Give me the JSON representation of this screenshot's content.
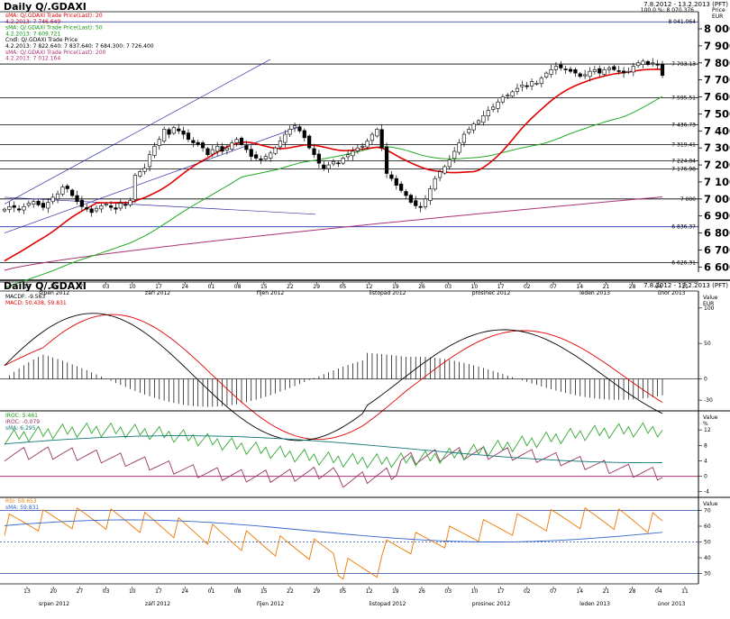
{
  "panel1": {
    "title": "Daily Q/.GDAXI",
    "date_range": "7.8.2012 - 13.2.2013 (PFT)",
    "legend": [
      {
        "text": "sMA: Q/.GDAXI Trade Price(Last): 20",
        "color": "#e00000"
      },
      {
        "text": "4.2.2013: 7 746.649",
        "color": "#e00000"
      },
      {
        "text": "sMA: Q/.GDAXI Trade Price(Last): 50",
        "color": "#119911"
      },
      {
        "text": "4.2.2013: 7 609.721",
        "color": "#119911"
      },
      {
        "text": "Cndl: Q/.GDAXI Trade Price",
        "color": "#000000"
      },
      {
        "text": "4.2.2013: 7 822.640: 7 837.640: 7 684.300: 7 726.400",
        "color": "#000000"
      },
      {
        "text": "sMA: Q/.GDAXI Trade Price(Last): 200",
        "color": "#aa3377"
      },
      {
        "text": "4.2.2013: 7 012.164",
        "color": "#aa3377"
      }
    ],
    "fib_label": "100.0 %: 8 070.376",
    "axis_title": [
      "Price",
      "EUR"
    ],
    "yticks": [
      "8 000",
      "7 900",
      "7 800",
      "7 700",
      "7 600",
      "7 500",
      "7 400",
      "7 300",
      "7 200",
      "7 100",
      "7 000",
      "6 900",
      "6 800",
      "6 700",
      "6 600"
    ],
    "hline_labels": [
      "8 041.064",
      "7 793.13",
      "7 595.51",
      "7 436.73",
      "7 319.41",
      "7 224.84",
      "7 176.98",
      "7 000",
      "6 836.37",
      "6 626.31"
    ],
    "x_tick_labels": [
      "13",
      "20",
      "27",
      "03",
      "10",
      "17",
      "24",
      "01",
      "08",
      "15",
      "22",
      "29",
      "05",
      "12",
      "19",
      "26",
      "03",
      "10",
      "17",
      "02",
      "07",
      "14",
      "21",
      "28",
      "04",
      "11"
    ],
    "x_month_labels": [
      "srpen 2012",
      "září 2012",
      "říjen 2012",
      "listopad 2012",
      "prosinec 2012",
      "leden 2013",
      "únor 2013"
    ]
  },
  "panel2": {
    "title": "Daily Q/.GDAXI",
    "date_range": "7.8.2012 - 13.2.2013 (PFT)",
    "legend": [
      {
        "text": "MACDF: -9.563",
        "color": "#000000"
      },
      {
        "text": "MACD: 50.438, 59.831",
        "color": "#e00000"
      }
    ],
    "axis_title": [
      "Value",
      "EUR"
    ],
    "yticks": [
      "100",
      "50",
      "0",
      "-30"
    ]
  },
  "panel3": {
    "legend": [
      {
        "text": "IROC: 5.461",
        "color": "#119911"
      },
      {
        "text": "IROC: -0.079",
        "color": "#993366"
      },
      {
        "text": "sMA: 6.295",
        "color": "#117777"
      }
    ],
    "axis_title": [
      "Value",
      "%"
    ],
    "yticks": [
      "12",
      "8",
      "4",
      "0",
      "-4"
    ]
  },
  "panel4": {
    "legend": [
      {
        "text": "RSI: 50.653",
        "color": "#ee7700"
      },
      {
        "text": "sMA: 59.831",
        "color": "#3366cc"
      }
    ],
    "axis_title": [
      "Value",
      ""
    ],
    "yticks": [
      "70",
      "60",
      "50",
      "40",
      "30"
    ],
    "x_tick_labels": [
      "13",
      "20",
      "27",
      "03",
      "10",
      "17",
      "24",
      "01",
      "08",
      "15",
      "22",
      "29",
      "05",
      "12",
      "19",
      "26",
      "03",
      "10",
      "17",
      "02",
      "07",
      "14",
      "21",
      "28",
      "04",
      "11"
    ],
    "x_month_labels": [
      "srpen 2012",
      "září 2012",
      "říjen 2012",
      "listopad 2012",
      "prosinec 2012",
      "leden 2013",
      "únor 2013"
    ]
  },
  "chart_data": [
    {
      "type": "candlestick",
      "title": "Daily Q/.GDAXI",
      "ylim": [
        6570,
        8090
      ],
      "grid": false,
      "x_start": "2012-08-07",
      "closes": [
        6940,
        6955,
        6950,
        6935,
        6955,
        6975,
        6985,
        6965,
        6950,
        6980,
        7010,
        7030,
        7070,
        7060,
        7020,
        6985,
        6955,
        6940,
        6920,
        6945,
        6960,
        6970,
        6950,
        6940,
        6975,
        6965,
        6990,
        7140,
        7160,
        7180,
        7260,
        7310,
        7350,
        7410,
        7380,
        7420,
        7400,
        7380,
        7350,
        7330,
        7320,
        7300,
        7260,
        7290,
        7310,
        7280,
        7300,
        7330,
        7350,
        7320,
        7290,
        7250,
        7240,
        7230,
        7250,
        7270,
        7300,
        7340,
        7380,
        7410,
        7430,
        7400,
        7360,
        7300,
        7260,
        7210,
        7180,
        7200,
        7220,
        7210,
        7240,
        7260,
        7280,
        7300,
        7310,
        7340,
        7380,
        7410,
        7300,
        7150,
        7120,
        7080,
        7050,
        7020,
        6980,
        6960,
        6950,
        7000,
        7060,
        7120,
        7160,
        7190,
        7230,
        7280,
        7330,
        7380,
        7410,
        7440,
        7460,
        7490,
        7520,
        7540,
        7570,
        7600,
        7610,
        7630,
        7650,
        7670,
        7660,
        7690,
        7680,
        7710,
        7740,
        7760,
        7780,
        7770,
        7760,
        7750,
        7740,
        7720,
        7730,
        7750,
        7760,
        7740,
        7760,
        7770,
        7760,
        7750,
        7740,
        7750,
        7780,
        7800,
        7810,
        7790,
        7800,
        7790,
        7726
      ],
      "sma20_start": 6620,
      "levels": [
        8041.064,
        7793.13,
        7595.51,
        7436.73,
        7319.41,
        7224.84,
        7176.98,
        7000,
        6836.37,
        6626.31
      ],
      "sma20_last": 7746.649,
      "sma50_last": 7609.721,
      "sma200_last": 7012.164
    },
    {
      "type": "line",
      "title": "MACD",
      "ylim": [
        -40,
        115
      ],
      "series": [
        {
          "name": "MACDF",
          "last": -9.563
        },
        {
          "name": "MACD",
          "last": 50.438
        }
      ]
    },
    {
      "type": "line",
      "title": "IROC",
      "ylim": [
        -5,
        16
      ],
      "series": [
        {
          "name": "IROC",
          "last": 5.461
        },
        {
          "name": "IROC",
          "last": -0.079
        },
        {
          "name": "sMA",
          "last": 6.295
        }
      ]
    },
    {
      "type": "line",
      "title": "RSI",
      "ylim": [
        28,
        76
      ],
      "series": [
        {
          "name": "RSI",
          "last": 50.653
        },
        {
          "name": "sMA",
          "last": 59.831
        }
      ]
    }
  ]
}
